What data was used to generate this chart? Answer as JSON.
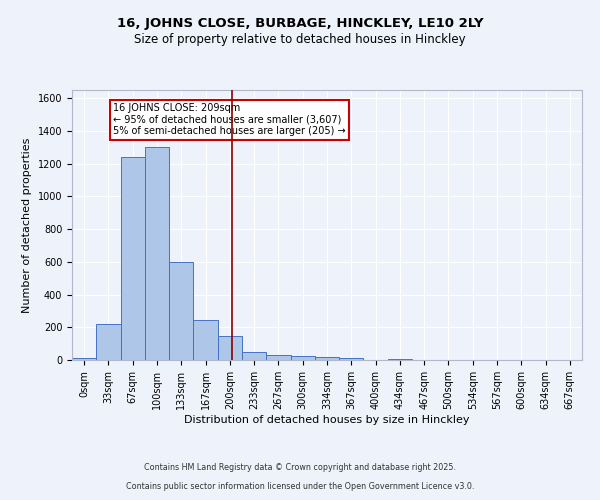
{
  "title": "16, JOHNS CLOSE, BURBAGE, HINCKLEY, LE10 2LY",
  "subtitle": "Size of property relative to detached houses in Hinckley",
  "xlabel": "Distribution of detached houses by size in Hinckley",
  "ylabel": "Number of detached properties",
  "footer_line1": "Contains HM Land Registry data © Crown copyright and database right 2025.",
  "footer_line2": "Contains public sector information licensed under the Open Government Licence v3.0.",
  "bin_labels": [
    "0sqm",
    "33sqm",
    "67sqm",
    "100sqm",
    "133sqm",
    "167sqm",
    "200sqm",
    "233sqm",
    "267sqm",
    "300sqm",
    "334sqm",
    "367sqm",
    "400sqm",
    "434sqm",
    "467sqm",
    "500sqm",
    "534sqm",
    "567sqm",
    "600sqm",
    "634sqm",
    "667sqm"
  ],
  "bar_values": [
    10,
    220,
    1240,
    1300,
    600,
    245,
    145,
    50,
    30,
    22,
    18,
    10,
    0,
    8,
    0,
    0,
    0,
    0,
    0,
    0,
    0
  ],
  "bar_color": "#aec6e8",
  "bar_edge_color": "#4472c4",
  "vline_x": 6.09,
  "vline_color": "#8b0000",
  "annotation_text": "16 JOHNS CLOSE: 209sqm\n← 95% of detached houses are smaller (3,607)\n5% of semi-detached houses are larger (205) →",
  "annotation_box_color": "#ffffff",
  "annotation_box_edge": "#cc0000",
  "ylim": [
    0,
    1650
  ],
  "yticks": [
    0,
    200,
    400,
    600,
    800,
    1000,
    1200,
    1400,
    1600
  ],
  "bg_color": "#eef2fb",
  "grid_color": "#ffffff",
  "title_fontsize": 9.5,
  "subtitle_fontsize": 8.5,
  "axis_label_fontsize": 8,
  "tick_fontsize": 7,
  "footer_fontsize": 5.8
}
